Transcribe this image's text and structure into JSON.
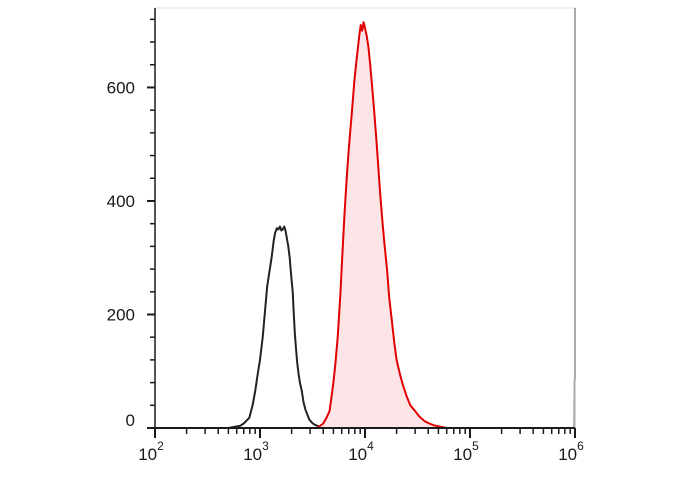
{
  "chart_data": {
    "type": "area",
    "title": "",
    "xlabel": "",
    "ylabel": "",
    "x_scale": "log",
    "xlim": [
      100,
      1000000
    ],
    "ylim": [
      0,
      740
    ],
    "x_ticks": [
      {
        "value": 100,
        "base": "10",
        "exp": "2"
      },
      {
        "value": 1000,
        "base": "10",
        "exp": "3"
      },
      {
        "value": 10000,
        "base": "10",
        "exp": "4"
      },
      {
        "value": 100000,
        "base": "10",
        "exp": "5"
      },
      {
        "value": 1000000,
        "base": "10",
        "exp": "6"
      }
    ],
    "y_ticks": [
      {
        "value": 0,
        "label": "0"
      },
      {
        "value": 200,
        "label": "200"
      },
      {
        "value": 400,
        "label": "400"
      },
      {
        "value": 600,
        "label": "600"
      }
    ],
    "grid": false,
    "legend": "none",
    "series": [
      {
        "color": "#222222",
        "fill": "none",
        "points": [
          [
            500,
            0
          ],
          [
            650,
            4
          ],
          [
            700,
            8
          ],
          [
            790,
            18
          ],
          [
            850,
            40
          ],
          [
            900,
            65
          ],
          [
            950,
            95
          ],
          [
            1000,
            120
          ],
          [
            1060,
            160
          ],
          [
            1120,
            210
          ],
          [
            1170,
            250
          ],
          [
            1230,
            275
          ],
          [
            1290,
            300
          ],
          [
            1350,
            330
          ],
          [
            1400,
            345
          ],
          [
            1450,
            352
          ],
          [
            1500,
            350
          ],
          [
            1550,
            355
          ],
          [
            1600,
            348
          ],
          [
            1650,
            350
          ],
          [
            1700,
            355
          ],
          [
            1750,
            348
          ],
          [
            1800,
            335
          ],
          [
            1860,
            320
          ],
          [
            1920,
            300
          ],
          [
            1980,
            270
          ],
          [
            2050,
            240
          ],
          [
            2100,
            200
          ],
          [
            2150,
            165
          ],
          [
            2200,
            140
          ],
          [
            2260,
            115
          ],
          [
            2330,
            95
          ],
          [
            2400,
            80
          ],
          [
            2500,
            65
          ],
          [
            2600,
            45
          ],
          [
            2700,
            33
          ],
          [
            2800,
            25
          ],
          [
            2950,
            15
          ],
          [
            3100,
            10
          ],
          [
            3300,
            6
          ],
          [
            3600,
            3
          ],
          [
            4000,
            0
          ]
        ]
      },
      {
        "color": "#e00000",
        "fill": "#fde4e6",
        "points": [
          [
            3500,
            0
          ],
          [
            4000,
            8
          ],
          [
            4300,
            18
          ],
          [
            4600,
            30
          ],
          [
            4800,
            55
          ],
          [
            5000,
            80
          ],
          [
            5200,
            110
          ],
          [
            5500,
            160
          ],
          [
            5800,
            230
          ],
          [
            6100,
            310
          ],
          [
            6400,
            380
          ],
          [
            6700,
            440
          ],
          [
            7000,
            490
          ],
          [
            7300,
            530
          ],
          [
            7600,
            570
          ],
          [
            7900,
            610
          ],
          [
            8200,
            640
          ],
          [
            8500,
            665
          ],
          [
            8800,
            690
          ],
          [
            9100,
            710
          ],
          [
            9400,
            700
          ],
          [
            9700,
            715
          ],
          [
            10000,
            705
          ],
          [
            10400,
            690
          ],
          [
            10800,
            670
          ],
          [
            11200,
            640
          ],
          [
            11700,
            600
          ],
          [
            12200,
            560
          ],
          [
            12800,
            510
          ],
          [
            13400,
            460
          ],
          [
            14000,
            410
          ],
          [
            14700,
            360
          ],
          [
            15400,
            320
          ],
          [
            16200,
            280
          ],
          [
            17000,
            230
          ],
          [
            18000,
            190
          ],
          [
            19000,
            150
          ],
          [
            20000,
            120
          ],
          [
            21500,
            95
          ],
          [
            23000,
            75
          ],
          [
            25000,
            55
          ],
          [
            27000,
            40
          ],
          [
            30000,
            30
          ],
          [
            33000,
            20
          ],
          [
            37000,
            12
          ],
          [
            41000,
            8
          ],
          [
            45000,
            5
          ],
          [
            50000,
            3
          ],
          [
            60000,
            0
          ]
        ]
      },
      {
        "color": "#aaaaaa",
        "fill": "#bbbbbb",
        "points": [
          [
            970000,
            0
          ],
          [
            980000,
            85
          ],
          [
            1000000,
            85
          ],
          [
            1000000,
            0
          ]
        ]
      }
    ]
  }
}
